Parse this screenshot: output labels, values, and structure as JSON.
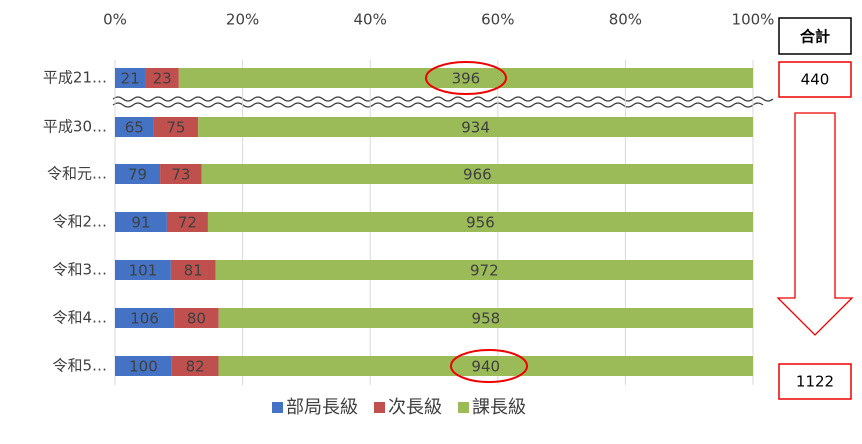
{
  "chart_data": {
    "type": "bar",
    "orientation": "horizontal",
    "stacking": "percent",
    "categories": [
      "平成21…",
      "平成30…",
      "令和元…",
      "令和2…",
      "令和3…",
      "令和4…",
      "令和5…"
    ],
    "series": [
      {
        "name": "部局長級",
        "color": "#4472c4",
        "values": [
          21,
          65,
          79,
          91,
          101,
          106,
          100
        ]
      },
      {
        "name": "次長級",
        "color": "#c0504d",
        "values": [
          23,
          75,
          73,
          72,
          81,
          80,
          82
        ]
      },
      {
        "name": "課長級",
        "color": "#9bbb59",
        "values": [
          396,
          934,
          966,
          956,
          972,
          958,
          940
        ]
      }
    ],
    "xlim": [
      0,
      100
    ],
    "xticks": [
      {
        "value": 0,
        "label": "0%"
      },
      {
        "value": 20,
        "label": "20%"
      },
      {
        "value": 40,
        "label": "40%"
      },
      {
        "value": 60,
        "label": "60%"
      },
      {
        "value": 80,
        "label": "80%"
      },
      {
        "value": 100,
        "label": "100%"
      }
    ],
    "grid": true,
    "legend": "bottom",
    "totals_header": "合計",
    "totals": [
      440,
      1122
    ]
  }
}
